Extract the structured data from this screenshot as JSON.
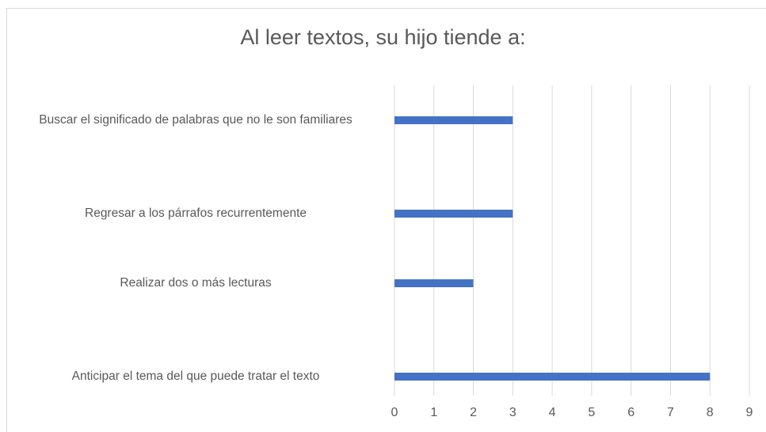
{
  "chart_data": {
    "type": "bar",
    "orientation": "horizontal",
    "title": "Al leer textos, su hijo tiende a:",
    "categories": [
      "Buscar el significado de palabras que no le son familiares",
      "Regresar a los párrafos recurrentemente",
      "Realizar dos o más lecturas",
      "Anticipar el tema del que puede tratar el texto"
    ],
    "values": [
      3,
      3,
      2,
      8
    ],
    "color": "#4472c4",
    "xlim": [
      0,
      9
    ],
    "xticks": [
      0,
      1,
      2,
      3,
      4,
      5,
      6,
      7,
      8,
      9
    ],
    "grid": true
  }
}
